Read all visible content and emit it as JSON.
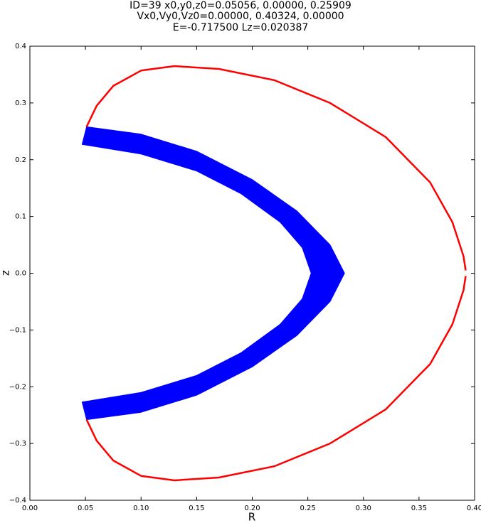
{
  "chart_data": {
    "type": "line",
    "title": [
      "ID=39      x0,y0,z0=0.05056, 0.00000, 0.25909",
      "Vx0,Vy0,Vz0=0.00000, 0.40324, 0.00000",
      "E=-0.717500    Lz=0.020387"
    ],
    "x_label": "R",
    "y_label": "z",
    "xlim": [
      0,
      0.4
    ],
    "ylim": [
      -0.4,
      0.4
    ],
    "xticks": [
      {
        "value": 0,
        "label": "0.00"
      },
      {
        "value": 0.05,
        "label": "0.05"
      },
      {
        "value": 0.1,
        "label": "0.10"
      },
      {
        "value": 0.15,
        "label": "0.15"
      },
      {
        "value": 0.2,
        "label": "0.20"
      },
      {
        "value": 0.25,
        "label": "0.25"
      },
      {
        "value": 0.3,
        "label": "0.30"
      },
      {
        "value": 0.35,
        "label": "0.35"
      },
      {
        "value": 0.4,
        "label": "0.40"
      }
    ],
    "yticks": [
      {
        "value": -0.4,
        "label": "−0.4"
      },
      {
        "value": -0.3,
        "label": "−0.3"
      },
      {
        "value": -0.2,
        "label": "−0.2"
      },
      {
        "value": -0.1,
        "label": "−0.1"
      },
      {
        "value": 0,
        "label": "0.0"
      },
      {
        "value": 0.1,
        "label": "0.1"
      },
      {
        "value": 0.2,
        "label": "0.2"
      },
      {
        "value": 0.3,
        "label": "0.3"
      },
      {
        "value": 0.4,
        "label": "0.4"
      }
    ],
    "series": [
      {
        "color": "#0000ff",
        "fill": true,
        "x": [
          0.051,
          0.1,
          0.15,
          0.2,
          0.24,
          0.27,
          0.283,
          0.27,
          0.24,
          0.2,
          0.15,
          0.1,
          0.051,
          0.047,
          0.1,
          0.15,
          0.19,
          0.225,
          0.245,
          0.253,
          0.245,
          0.225,
          0.19,
          0.15,
          0.1,
          0.047
        ],
        "values": [
          0.258,
          0.245,
          0.215,
          0.165,
          0.11,
          0.05,
          0,
          -0.05,
          -0.11,
          -0.165,
          -0.215,
          -0.245,
          -0.258,
          -0.227,
          -0.21,
          -0.18,
          -0.14,
          -0.09,
          -0.045,
          0,
          0.045,
          0.09,
          0.14,
          0.18,
          0.21,
          0.227
        ]
      },
      {
        "color": "#ff0000",
        "fill": false,
        "x": [
          0.051,
          0.06,
          0.075,
          0.1,
          0.13,
          0.17,
          0.22,
          0.27,
          0.32,
          0.36,
          0.38,
          0.39,
          0.392,
          null,
          0.392,
          0.39,
          0.38,
          0.36,
          0.32,
          0.27,
          0.22,
          0.17,
          0.13,
          0.1,
          0.075,
          0.06,
          0.051
        ],
        "values": [
          0.258,
          0.295,
          0.33,
          0.357,
          0.365,
          0.36,
          0.34,
          0.3,
          0.24,
          0.16,
          0.09,
          0.03,
          0.005,
          null,
          -0.005,
          -0.03,
          -0.09,
          -0.16,
          -0.24,
          -0.3,
          -0.34,
          -0.36,
          -0.365,
          -0.357,
          -0.33,
          -0.295,
          -0.258
        ]
      }
    ]
  }
}
